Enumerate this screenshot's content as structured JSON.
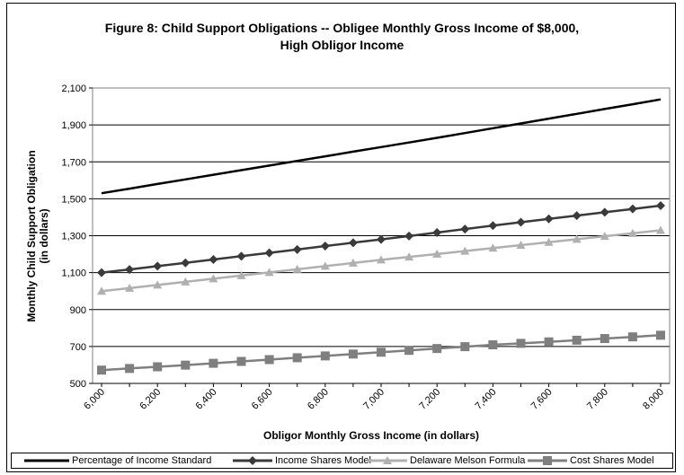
{
  "chart_data": {
    "type": "line",
    "title_line1": "Figure 8: Child Support Obligations -- Obligee Monthly Gross Income of $8,000,",
    "title_line2": "High Obligor Income",
    "xlabel": "Obligor Monthly Gross Income (in dollars)",
    "ylabel_line1": "Monthly Child Support Obligation",
    "ylabel_line2": "(in dollars)",
    "ylim": [
      500,
      2100
    ],
    "yticks": [
      "500",
      "700",
      "900",
      "1,100",
      "1,300",
      "1,500",
      "1,700",
      "1,900",
      "2,100"
    ],
    "ytick_values": [
      500,
      700,
      900,
      1100,
      1300,
      1500,
      1700,
      1900,
      2100
    ],
    "x": [
      6000,
      6100,
      6200,
      6300,
      6400,
      6500,
      6600,
      6700,
      6800,
      6900,
      7000,
      7100,
      7200,
      7300,
      7400,
      7500,
      7600,
      7700,
      7800,
      7900,
      8000
    ],
    "xticks": [
      "6,000",
      "6,200",
      "6,400",
      "6,600",
      "6,800",
      "7,000",
      "7,200",
      "7,400",
      "7,600",
      "7,800",
      "8,000"
    ],
    "xtick_values": [
      6000,
      6200,
      6400,
      6600,
      6800,
      7000,
      7200,
      7400,
      7600,
      7800,
      8000
    ],
    "grid": true,
    "legend_position": "bottom",
    "series": [
      {
        "name": "Percentage of Income Standard",
        "color": "#000000",
        "marker": "none",
        "values": [
          1530,
          1555,
          1580,
          1605,
          1630,
          1655,
          1680,
          1705,
          1730,
          1755,
          1780,
          1805,
          1830,
          1856,
          1882,
          1908,
          1934,
          1960,
          1986,
          2012,
          2038
        ]
      },
      {
        "name": "Income Shares Model",
        "color": "#3a3a3a",
        "marker": "diamond",
        "values": [
          1100,
          1117,
          1135,
          1153,
          1171,
          1189,
          1207,
          1225,
          1244,
          1262,
          1280,
          1298,
          1317,
          1336,
          1355,
          1373,
          1391,
          1409,
          1427,
          1445,
          1463
        ]
      },
      {
        "name": "Delaware Melson Formula",
        "color": "#b0b0b0",
        "marker": "triangle",
        "values": [
          1000,
          1016,
          1033,
          1050,
          1067,
          1084,
          1101,
          1118,
          1135,
          1152,
          1169,
          1185,
          1201,
          1217,
          1233,
          1249,
          1265,
          1281,
          1297,
          1313,
          1329
        ]
      },
      {
        "name": "Cost Shares Model",
        "color": "#7f7f7f",
        "marker": "square",
        "values": [
          572,
          581,
          590,
          599,
          609,
          619,
          629,
          639,
          649,
          659,
          669,
          679,
          689,
          699,
          709,
          717,
          725,
          734,
          743,
          752,
          761
        ]
      }
    ]
  }
}
